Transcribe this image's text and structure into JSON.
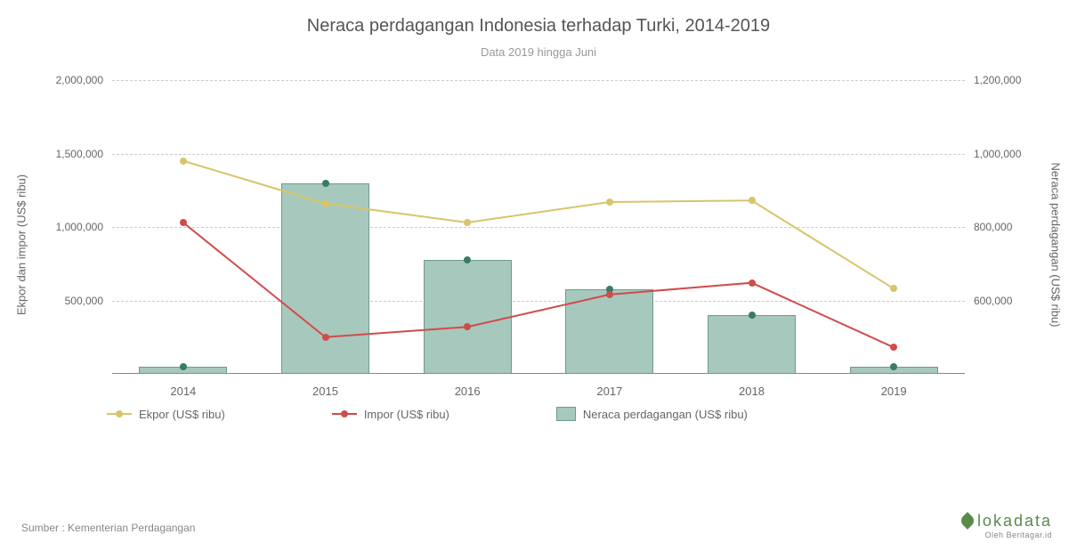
{
  "title": "Neraca perdagangan Indonesia terhadap Turki, 2014-2019",
  "title_fontsize": 20,
  "title_color": "#555555",
  "subtitle": "Data 2019 hingga Juni",
  "subtitle_color": "#999999",
  "background_color": "#ffffff",
  "grid_color": "#cccccc",
  "axis_color": "#888888",
  "text_color": "#666666",
  "y_left": {
    "label": "Ekpor dan impor (US$ ribu)",
    "min": 0,
    "max": 2000000,
    "ticks": [
      500000,
      1000000,
      1500000,
      2000000
    ],
    "tick_labels": [
      "500,000",
      "1,000,000",
      "1,500,000",
      "2,000,000"
    ]
  },
  "y_right": {
    "label": "Neraca perdagangan (US$ ribu)",
    "min": 400000,
    "max": 1200000,
    "ticks": [
      600000,
      800000,
      1000000,
      1200000
    ],
    "tick_labels": [
      "600,000",
      "800,000",
      "1,000,000",
      "1,200,000"
    ]
  },
  "categories": [
    "2014",
    "2015",
    "2016",
    "2017",
    "2018",
    "2019"
  ],
  "series": {
    "ekspor": {
      "label": "Ekpor (US$ ribu)",
      "type": "line",
      "axis": "left",
      "color": "#d6c56a",
      "marker_color": "#d6c56a",
      "line_width": 2,
      "values": [
        1450000,
        1160000,
        1030000,
        1170000,
        1180000,
        580000
      ]
    },
    "impor": {
      "label": "Impor (US$ ribu)",
      "type": "line",
      "axis": "left",
      "color": "#d14b4b",
      "marker_color": "#d14b4b",
      "line_width": 2,
      "values": [
        1030000,
        250000,
        320000,
        540000,
        620000,
        180000
      ]
    },
    "neraca": {
      "label": "Neraca perdagangan (US$ ribu)",
      "type": "bar",
      "axis": "right",
      "fill_color": "#a7c8bd",
      "border_color": "#6d9b8c",
      "marker_color": "#3a7a6a",
      "bar_width_frac": 0.62,
      "values": [
        420000,
        920000,
        710000,
        630000,
        560000,
        420000
      ]
    }
  },
  "legend_items": [
    {
      "key": "ekspor",
      "kind": "line"
    },
    {
      "key": "impor",
      "kind": "line"
    },
    {
      "key": "neraca",
      "kind": "box"
    }
  ],
  "source_text": "Sumber : Kementerian Perdagangan",
  "brand": {
    "name": "lokadata",
    "tagline": "Oleh Beritagar.id",
    "color": "#5a8a4a"
  }
}
